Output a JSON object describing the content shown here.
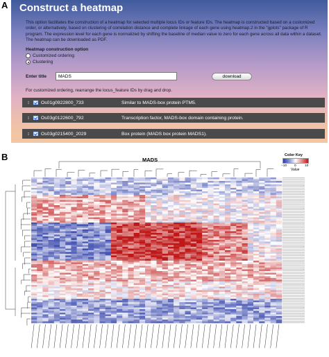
{
  "panel_a_letter": "A",
  "panel_b_letter": "B",
  "header": {
    "title": "Construct a heatmap"
  },
  "intro_text": "This option facilitates the construction of a heatmap for selected multiple locus IDs or feature IDs. The heatmap is constructed based on a customized order, or alternatively, based on clustering of correlation distance and complete linkage of each gene using heatmap.2 in the \"gplots\" package of R program. The expression level for each gene is normalized by shifting the baseline of median value to zero for each gene across all data within a dataset. The heatmap can be downloaded as PDF.",
  "options": {
    "heading": "Heatmap construction option",
    "customized_label": "Customized ordering",
    "clustering_label": "Clustering",
    "selected": "Clustering"
  },
  "title_field": {
    "label": "Enter title",
    "value": "MADS"
  },
  "download_label": "download",
  "ordering_note": "For customized ordering, rearrange the locus_feature IDs by drag and drop.",
  "genes": [
    {
      "id": "Os01g0922800_733",
      "description": "Similar to MADS-box protein PTM5."
    },
    {
      "id": "Os03g0122600_792",
      "description": "Transcription factor, MADS-box domain containing protein."
    },
    {
      "id": "Os03g0215400_2029",
      "description": "Box protein (MADS box protein MADS1)."
    }
  ],
  "heatmap": {
    "title": "MADS",
    "colorkey_title": "Color Key",
    "colorkey_ticks": [
      "−10",
      "0",
      "10"
    ],
    "colorkey_value_label": "Value",
    "colors": {
      "low": "#2b3ca8",
      "mid": "#ffffff",
      "high": "#c01818"
    }
  },
  "icons": {
    "drag": "drag-handle-icon",
    "check": "checkbox-icon"
  }
}
